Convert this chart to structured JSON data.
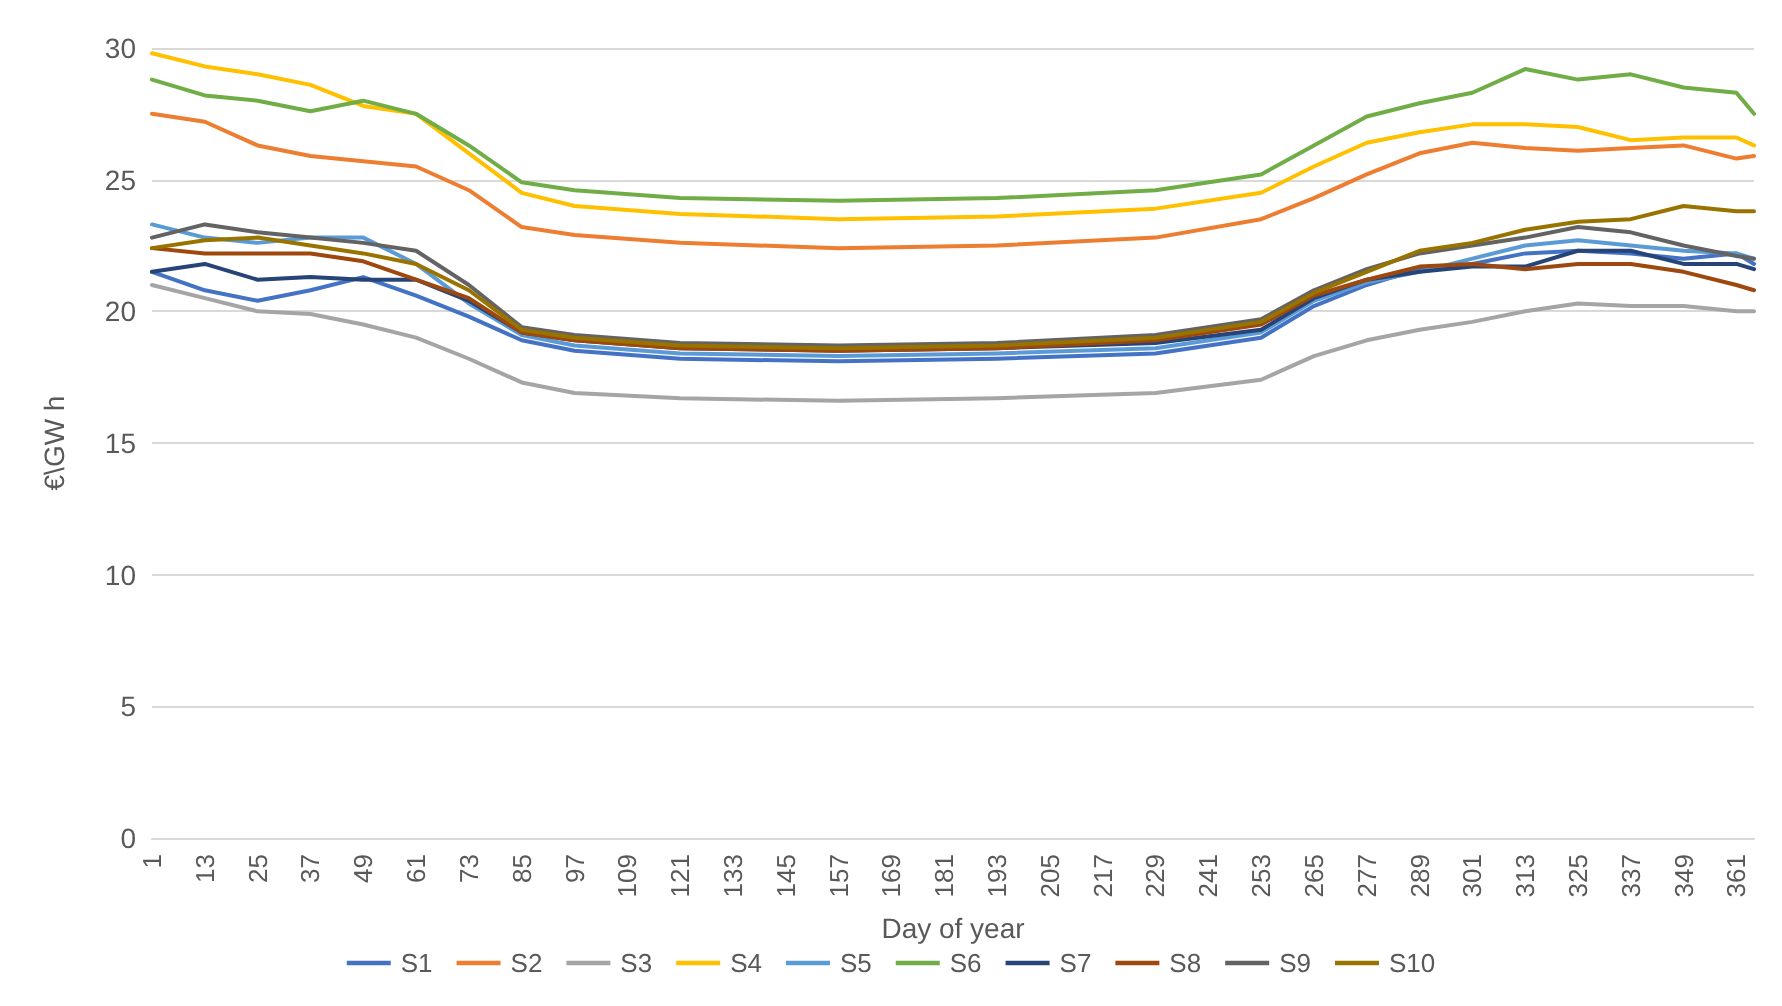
{
  "chart_data": {
    "type": "line",
    "xlabel": "Day of year",
    "ylabel": "€\\GW h",
    "x": [
      1,
      13,
      25,
      37,
      49,
      61,
      73,
      85,
      97,
      121,
      157,
      193,
      229,
      253,
      265,
      277,
      289,
      301,
      313,
      325,
      337,
      349,
      361,
      365
    ],
    "series": [
      {
        "name": "S1",
        "color": "#4472c4",
        "values": [
          21.5,
          20.8,
          20.4,
          20.8,
          21.3,
          20.6,
          19.8,
          18.9,
          18.5,
          18.2,
          18.1,
          18.2,
          18.4,
          19.0,
          20.2,
          21.0,
          21.6,
          21.8,
          22.2,
          22.3,
          22.2,
          22.0,
          22.2,
          21.8
        ]
      },
      {
        "name": "S2",
        "color": "#ed7d31",
        "values": [
          27.5,
          27.2,
          26.3,
          25.9,
          25.7,
          25.5,
          24.6,
          23.2,
          22.9,
          22.6,
          22.4,
          22.5,
          22.8,
          23.5,
          24.3,
          25.2,
          26.0,
          26.4,
          26.2,
          26.1,
          26.2,
          26.3,
          25.8,
          25.9
        ]
      },
      {
        "name": "S3",
        "color": "#a5a5a5",
        "values": [
          21.0,
          20.5,
          20.0,
          19.9,
          19.5,
          19.0,
          18.2,
          17.3,
          16.9,
          16.7,
          16.6,
          16.7,
          16.9,
          17.4,
          18.3,
          18.9,
          19.3,
          19.6,
          20.0,
          20.3,
          20.2,
          20.2,
          20.0,
          20.0
        ]
      },
      {
        "name": "S4",
        "color": "#ffc000",
        "values": [
          29.8,
          29.3,
          29.0,
          28.6,
          27.8,
          27.5,
          26.0,
          24.5,
          24.0,
          23.7,
          23.5,
          23.6,
          23.9,
          24.5,
          25.5,
          26.4,
          26.8,
          27.1,
          27.1,
          27.0,
          26.5,
          26.6,
          26.6,
          26.3
        ]
      },
      {
        "name": "S5",
        "color": "#5b9bd5",
        "values": [
          23.3,
          22.8,
          22.6,
          22.8,
          22.8,
          21.8,
          20.3,
          19.1,
          18.7,
          18.4,
          18.3,
          18.4,
          18.6,
          19.2,
          20.4,
          21.1,
          21.5,
          22.0,
          22.5,
          22.7,
          22.5,
          22.3,
          22.2,
          22.0
        ]
      },
      {
        "name": "S6",
        "color": "#70ad47",
        "values": [
          28.8,
          28.2,
          28.0,
          27.6,
          28.0,
          27.5,
          26.3,
          24.9,
          24.6,
          24.3,
          24.2,
          24.3,
          24.6,
          25.2,
          26.3,
          27.4,
          27.9,
          28.3,
          29.2,
          28.8,
          29.0,
          28.5,
          28.3,
          27.5
        ]
      },
      {
        "name": "S7",
        "color": "#264478",
        "values": [
          21.5,
          21.8,
          21.2,
          21.3,
          21.2,
          21.2,
          20.4,
          19.2,
          18.9,
          18.6,
          18.5,
          18.6,
          18.8,
          19.3,
          20.5,
          21.2,
          21.5,
          21.7,
          21.7,
          22.3,
          22.3,
          21.8,
          21.8,
          21.6
        ]
      },
      {
        "name": "S8",
        "color": "#9e480e",
        "values": [
          22.4,
          22.2,
          22.2,
          22.2,
          21.9,
          21.2,
          20.5,
          19.2,
          18.9,
          18.6,
          18.5,
          18.6,
          18.9,
          19.5,
          20.6,
          21.2,
          21.7,
          21.8,
          21.6,
          21.8,
          21.8,
          21.5,
          21.0,
          20.8
        ]
      },
      {
        "name": "S9",
        "color": "#636363",
        "values": [
          22.8,
          23.3,
          23.0,
          22.8,
          22.6,
          22.3,
          21.0,
          19.4,
          19.1,
          18.8,
          18.7,
          18.8,
          19.1,
          19.7,
          20.8,
          21.6,
          22.2,
          22.5,
          22.8,
          23.2,
          23.0,
          22.5,
          22.1,
          22.0
        ]
      },
      {
        "name": "S10",
        "color": "#997300",
        "values": [
          22.4,
          22.7,
          22.8,
          22.5,
          22.2,
          21.8,
          20.8,
          19.3,
          19.0,
          18.7,
          18.6,
          18.7,
          19.0,
          19.6,
          20.7,
          21.5,
          22.3,
          22.6,
          23.1,
          23.4,
          23.5,
          24.0,
          23.8,
          23.8
        ]
      }
    ],
    "xlim": [
      1,
      365
    ],
    "xticks": [
      1,
      13,
      25,
      37,
      49,
      61,
      73,
      85,
      97,
      109,
      121,
      133,
      145,
      157,
      169,
      181,
      193,
      205,
      217,
      229,
      241,
      253,
      265,
      277,
      289,
      301,
      313,
      325,
      337,
      349,
      361
    ],
    "ylim": [
      0,
      30
    ],
    "yticks": [
      0,
      5,
      10,
      15,
      20,
      25,
      30
    ],
    "grid": "y",
    "legend": "bottom",
    "marker": "none",
    "line_style": "solid"
  }
}
